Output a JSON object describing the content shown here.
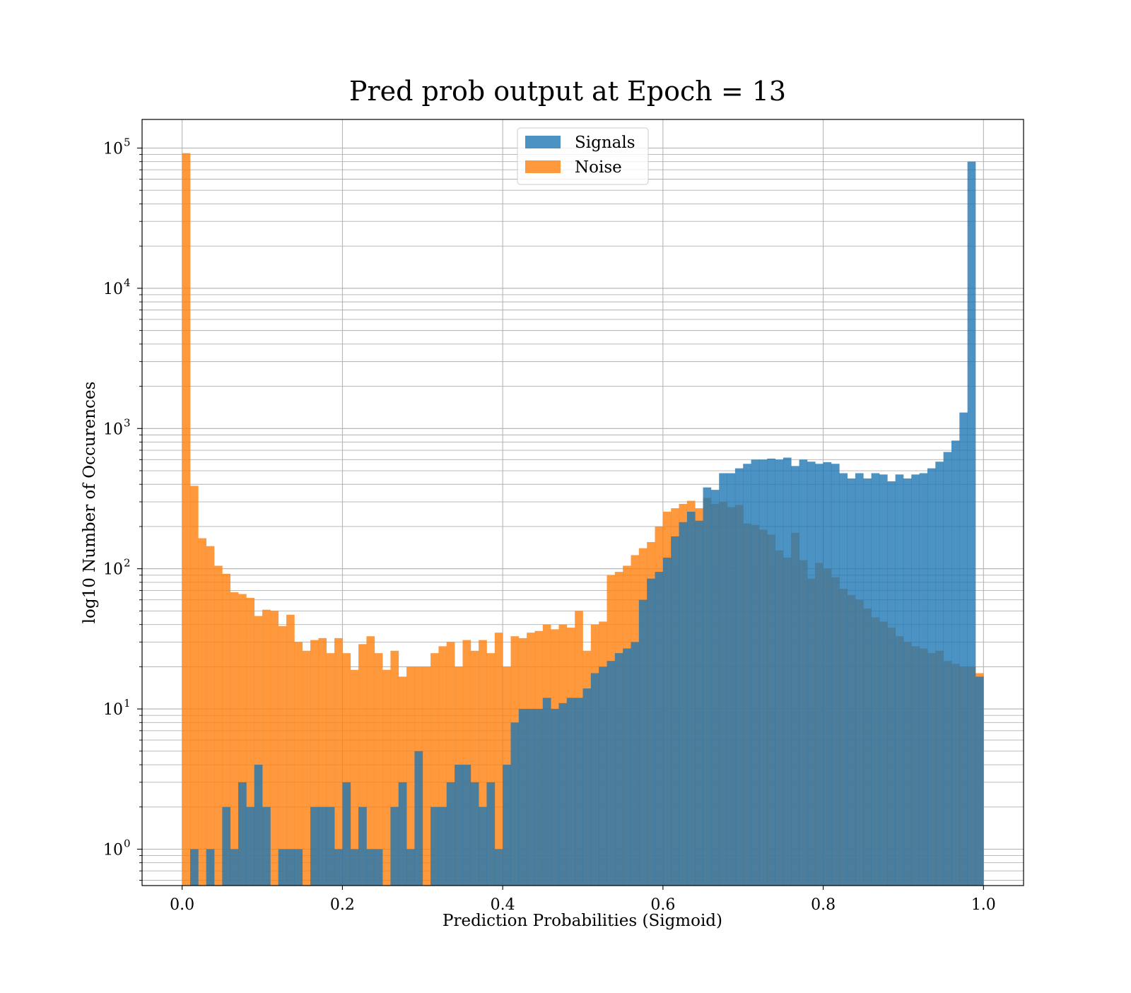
{
  "chart_data": {
    "type": "bar",
    "title": "Pred prob output at Epoch = 13",
    "xlabel": "Prediction Probabilities (Sigmoid)",
    "ylabel": "log10 Number of Occurences",
    "xlim": [
      -0.05,
      1.05
    ],
    "ylim": [
      0.55,
      160000
    ],
    "yscale": "log",
    "grid": true,
    "legend_position": "top-center",
    "x_ticks": [
      0.0,
      0.2,
      0.4,
      0.6,
      0.8,
      1.0
    ],
    "x_tick_labels": [
      "0.0",
      "0.2",
      "0.4",
      "0.6",
      "0.8",
      "1.0"
    ],
    "y_ticks": [
      {
        "value": 1,
        "base": "10",
        "exp": "0"
      },
      {
        "value": 10,
        "base": "10",
        "exp": "1"
      },
      {
        "value": 100,
        "base": "10",
        "exp": "2"
      },
      {
        "value": 1000,
        "base": "10",
        "exp": "3"
      },
      {
        "value": 10000,
        "base": "10",
        "exp": "4"
      },
      {
        "value": 100000,
        "base": "10",
        "exp": "5"
      }
    ],
    "bin_start": 0.0,
    "bin_width": 0.01,
    "series": [
      {
        "name": "Signals",
        "color": "#1f77b4",
        "opacity": 0.8,
        "values": [
          0,
          1,
          0,
          1,
          0,
          2,
          1,
          3,
          2,
          4,
          2,
          0,
          1,
          1,
          1,
          0,
          2,
          2,
          2,
          1,
          3,
          1,
          2,
          1,
          1,
          0,
          2,
          3,
          1,
          5,
          0,
          2,
          2,
          3,
          4,
          4,
          3,
          2,
          3,
          1,
          4,
          8,
          10,
          10,
          10,
          12,
          10,
          11,
          12,
          12,
          14,
          18,
          20,
          22,
          25,
          27,
          30,
          60,
          85,
          95,
          120,
          170,
          215,
          255,
          220,
          380,
          365,
          480,
          480,
          520,
          560,
          600,
          600,
          610,
          600,
          620,
          540,
          600,
          580,
          560,
          575,
          560,
          480,
          440,
          480,
          440,
          480,
          470,
          420,
          470,
          440,
          470,
          480,
          520,
          580,
          680,
          820,
          1300,
          80000,
          17
        ]
      },
      {
        "name": "Noise",
        "color": "#ff7f0e",
        "opacity": 0.8,
        "values": [
          92000,
          390,
          165,
          145,
          105,
          92,
          68,
          66,
          62,
          46,
          51,
          50,
          39,
          47,
          30,
          26,
          31,
          32,
          25,
          32,
          25,
          19,
          29,
          33,
          25,
          19,
          26,
          17,
          20,
          20,
          20,
          25,
          28,
          30,
          20,
          31,
          26,
          31,
          25,
          35,
          20,
          33,
          32,
          35,
          36,
          40,
          37,
          40,
          38,
          50,
          26,
          40,
          42,
          90,
          95,
          105,
          125,
          140,
          155,
          200,
          255,
          270,
          290,
          305,
          270,
          320,
          290,
          300,
          275,
          285,
          210,
          205,
          190,
          175,
          135,
          120,
          180,
          115,
          85,
          110,
          100,
          87,
          72,
          65,
          60,
          52,
          45,
          42,
          38,
          33,
          30,
          28,
          27,
          25,
          26,
          22,
          21,
          20,
          20,
          18
        ]
      }
    ],
    "legend": [
      "Signals",
      "Noise"
    ]
  }
}
